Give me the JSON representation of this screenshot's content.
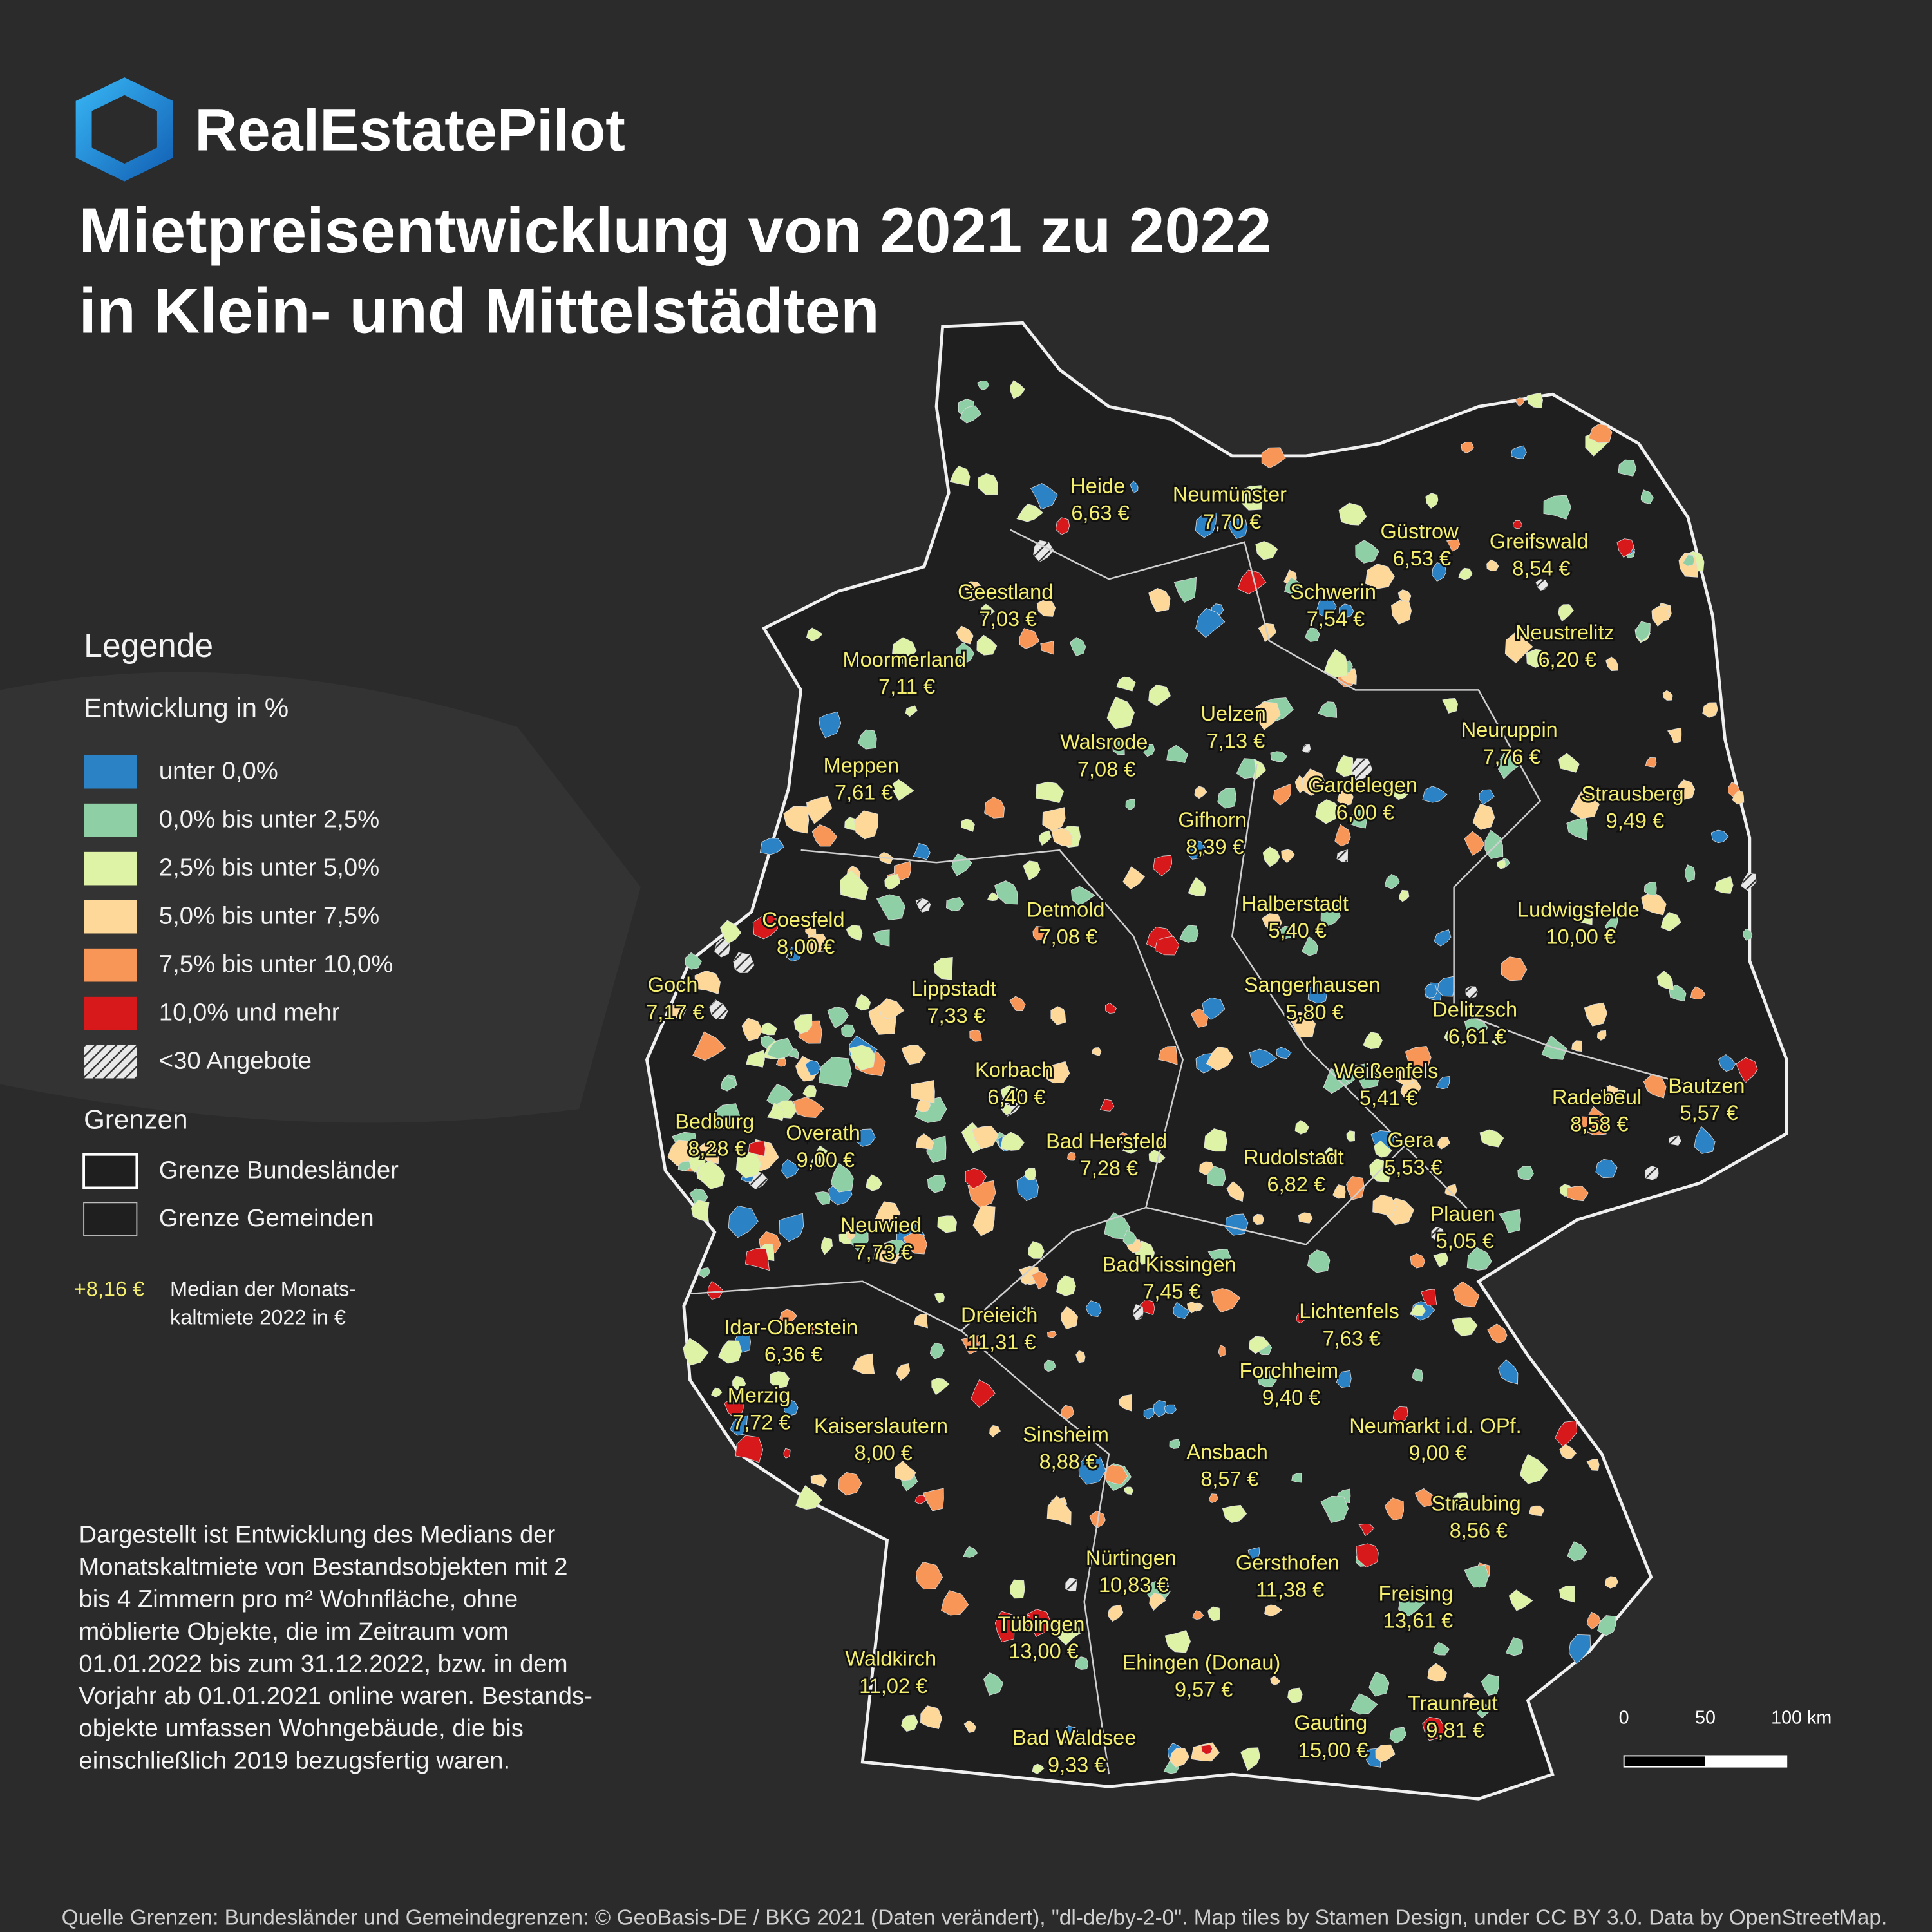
{
  "header": {
    "brand": "RealEstatePilot",
    "title_lines": [
      "Mietpreisentwicklung von 2021 zu 2022",
      "in Klein- und Mittelstädten"
    ]
  },
  "legend": {
    "title": "Legende",
    "development_title": "Entwicklung in %",
    "classes": [
      {
        "label": "unter 0,0%",
        "color": "#2b83c6"
      },
      {
        "label": "0,0% bis unter 2,5%",
        "color": "#8fcfa6"
      },
      {
        "label": "2,5% bis unter 5,0%",
        "color": "#dff3a6"
      },
      {
        "label": "5,0% bis unter 7,5%",
        "color": "#fdd898"
      },
      {
        "label": "7,5% bis unter 10,0%",
        "color": "#f89658"
      },
      {
        "label": "10,0% und mehr",
        "color": "#d7191c"
      },
      {
        "label": "<30 Angebote",
        "color": "hatch"
      }
    ],
    "borders_title": "Grenzen",
    "borders": [
      "Grenze Bundesländer",
      "Grenze Gemeinden"
    ],
    "median_example": "+8,16 €",
    "median_text": [
      "Median der Monats-",
      "kaltmiete 2022 in €"
    ]
  },
  "cities": [
    {
      "name": "Heide",
      "price": "6,63 €"
    },
    {
      "name": "Neumünster",
      "price": "7,70 €"
    },
    {
      "name": "Güstrow",
      "price": "6,53 €"
    },
    {
      "name": "Greifswald",
      "price": "8,54 €"
    },
    {
      "name": "Geestland",
      "price": "7,03 €"
    },
    {
      "name": "Schwerin",
      "price": "7,54 €"
    },
    {
      "name": "Neustrelitz",
      "price": "6,20 €"
    },
    {
      "name": "Moormerland",
      "price": "7,11 €"
    },
    {
      "name": "Uelzen",
      "price": "7,13 €"
    },
    {
      "name": "Neuruppin",
      "price": "7,76 €"
    },
    {
      "name": "Walsrode",
      "price": "7,08 €"
    },
    {
      "name": "Meppen",
      "price": "7,61 €"
    },
    {
      "name": "Gardelegen",
      "price": "6,00 €"
    },
    {
      "name": "Strausberg",
      "price": "9,49 €"
    },
    {
      "name": "Gifhorn",
      "price": "8,39 €"
    },
    {
      "name": "Halberstadt",
      "price": "5,40 €"
    },
    {
      "name": "Detmold",
      "price": "7,08 €"
    },
    {
      "name": "Ludwigsfelde",
      "price": "10,00 €"
    },
    {
      "name": "Coesfeld",
      "price": "8,00 €"
    },
    {
      "name": "Goch",
      "price": "7,17 €"
    },
    {
      "name": "Sangerhausen",
      "price": "5,80 €"
    },
    {
      "name": "Lippstadt",
      "price": "7,33 €"
    },
    {
      "name": "Delitzsch",
      "price": "6,61 €"
    },
    {
      "name": "Korbach",
      "price": "6,40 €"
    },
    {
      "name": "Weißenfels",
      "price": "5,41 €"
    },
    {
      "name": "Bautzen",
      "price": "5,57 €"
    },
    {
      "name": "Radebeul",
      "price": "8,58 €"
    },
    {
      "name": "Bedburg",
      "price": "8,28 €"
    },
    {
      "name": "Overath",
      "price": "9,00 €"
    },
    {
      "name": "Bad Hersfeld",
      "price": "7,28 €"
    },
    {
      "name": "Gera",
      "price": "5,53 €"
    },
    {
      "name": "Rudolstadt",
      "price": "6,82 €"
    },
    {
      "name": "Plauen",
      "price": "5,05 €"
    },
    {
      "name": "Neuwied",
      "price": "7,73 €"
    },
    {
      "name": "Bad Kissingen",
      "price": "7,45 €"
    },
    {
      "name": "Lichtenfels",
      "price": "7,63 €"
    },
    {
      "name": "Dreieich",
      "price": "11,31 €"
    },
    {
      "name": "Idar-Oberstein",
      "price": "6,36 €"
    },
    {
      "name": "Forchheim",
      "price": "9,40 €"
    },
    {
      "name": "Merzig",
      "price": "7,72 €"
    },
    {
      "name": "Kaiserslautern",
      "price": "8,00 €"
    },
    {
      "name": "Neumarkt i.d. OPf.",
      "price": "9,00 €"
    },
    {
      "name": "Sinsheim",
      "price": "8,88 €"
    },
    {
      "name": "Ansbach",
      "price": "8,57 €"
    },
    {
      "name": "Straubing",
      "price": "8,56 €"
    },
    {
      "name": "Nürtingen",
      "price": "10,83 €"
    },
    {
      "name": "Gersthofen",
      "price": "11,38 €"
    },
    {
      "name": "Freising",
      "price": "13,61 €"
    },
    {
      "name": "Tübingen",
      "price": "13,00 €"
    },
    {
      "name": "Waldkirch",
      "price": "11,02 €"
    },
    {
      "name": "Ehingen (Donau)",
      "price": "9,57 €"
    },
    {
      "name": "Traunreut",
      "price": "9,81 €"
    },
    {
      "name": "Gauting",
      "price": "15,00 €"
    },
    {
      "name": "Bad Waldsee",
      "price": "9,33 €"
    }
  ],
  "scale_bar": [
    "0",
    "50",
    "100 km"
  ],
  "description": [
    "Dargestellt ist Entwicklung des Medians der",
    "Monatskaltmiete von Bestandsobjekten mit 2",
    "bis 4 Zimmern pro m² Wohnfläche, ohne",
    "möblierte Objekte, die im Zeitraum vom",
    "01.01.2022 bis zum 31.12.2022, bzw. in dem",
    "Vorjahr ab 01.01.2021 online waren. Bestands-",
    "objekte umfassen Wohngebäude, die bis",
    "einschließlich 2019 bezugsfertig waren."
  ],
  "footer": "Quelle Grenzen: Bundesländer und Gemeindegrenzen: © GeoBasis-DE / BKG 2021 (Daten verändert), \"dl-de/by-2-0\". Map tiles by Stamen Design, under CC BY 3.0. Data by OpenStreetMap."
}
